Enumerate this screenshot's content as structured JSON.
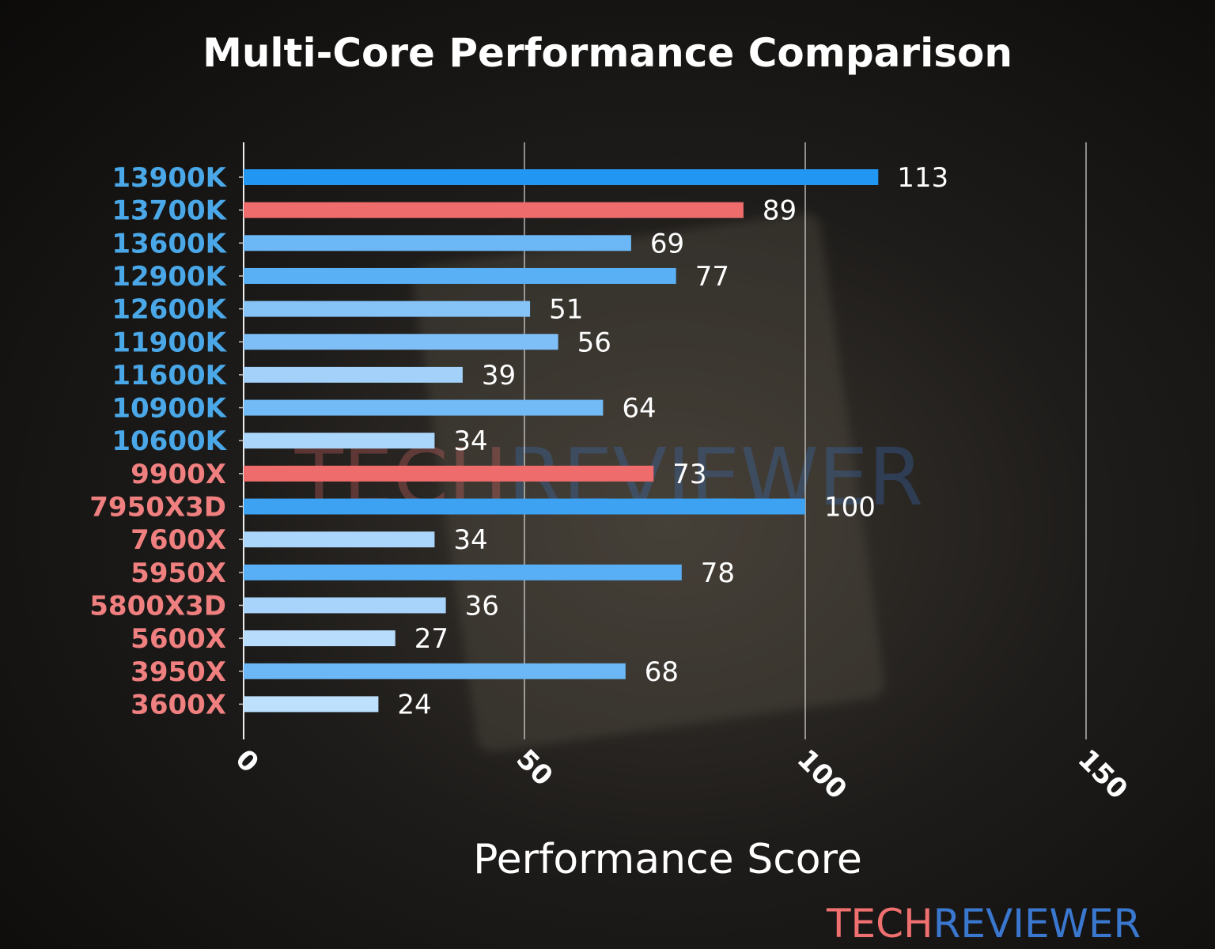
{
  "chart_data": {
    "type": "bar",
    "orientation": "horizontal",
    "title": "Multi-Core Performance Comparison",
    "xlabel": "Performance Score",
    "ylabel": "",
    "xlim": [
      0,
      150
    ],
    "xticks": [
      0,
      50,
      100,
      150
    ],
    "grid": "vertical",
    "categories": [
      "13900K",
      "13700K",
      "13600K",
      "12900K",
      "12600K",
      "11900K",
      "11600K",
      "10900K",
      "10600K",
      "9900X",
      "7950X3D",
      "7600X",
      "5950X",
      "5800X3D",
      "5600X",
      "3950X",
      "3600X"
    ],
    "values": [
      113,
      89,
      69,
      77,
      51,
      56,
      39,
      64,
      34,
      73,
      100,
      34,
      78,
      36,
      27,
      68,
      24
    ],
    "bar_colors": [
      "#2196f3",
      "#ef6c6c",
      "#6cb8f6",
      "#5ab0f5",
      "#86c4f8",
      "#7ebff7",
      "#a3d1fa",
      "#72bbf6",
      "#abd6fb",
      "#ef6c6c",
      "#3ea2f3",
      "#abd6fb",
      "#58aff5",
      "#a8d4fb",
      "#b8dcfb",
      "#6cb8f6",
      "#bde0fc"
    ],
    "label_colors": [
      "#4aa8e8",
      "#4aa8e8",
      "#4aa8e8",
      "#4aa8e8",
      "#4aa8e8",
      "#4aa8e8",
      "#4aa8e8",
      "#4aa8e8",
      "#4aa8e8",
      "#f08080",
      "#f08080",
      "#f08080",
      "#f08080",
      "#f08080",
      "#f08080",
      "#f08080",
      "#f08080"
    ]
  },
  "watermark": {
    "part1": "TECH",
    "part2": "REVIEWER",
    "color1": "#f07070",
    "color2": "#3a78d0"
  }
}
